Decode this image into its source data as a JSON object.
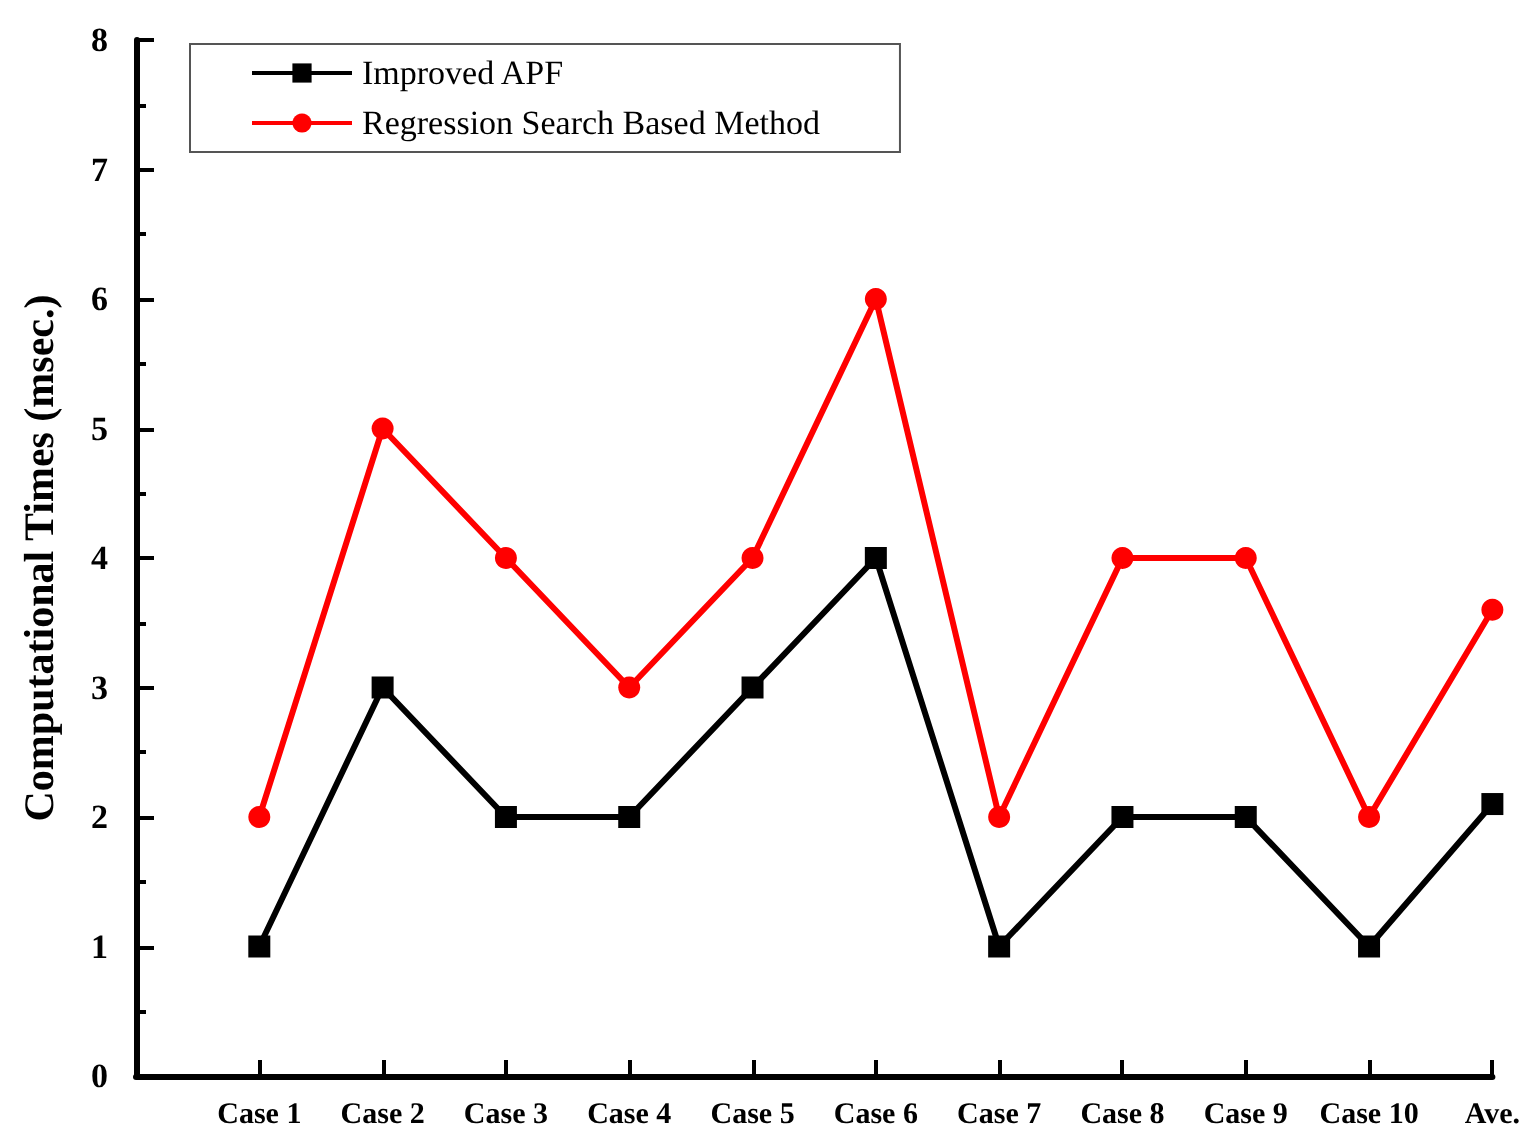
{
  "chart_data": {
    "type": "line",
    "ylabel": "Computational Times (msec.)",
    "categories": [
      null,
      "Case 1",
      "Case 2",
      "Case 3",
      "Case 4",
      "Case 5",
      "Case 6",
      "Case 7",
      "Case 8",
      "Case 9",
      "Case 10",
      "Ave."
    ],
    "series": [
      {
        "name": "Improved APF",
        "color": "#000000",
        "marker": "square",
        "values": [
          null,
          1,
          3,
          2,
          2,
          3,
          4,
          1,
          2,
          2,
          1,
          2.1
        ]
      },
      {
        "name": "Regression Search Based Method",
        "color": "#ff0000",
        "marker": "circle",
        "values": [
          null,
          2,
          5,
          4,
          3,
          4,
          6,
          2,
          4,
          4,
          2,
          3.6
        ]
      }
    ],
    "ylim": [
      0,
      8
    ],
    "yticks": [
      0,
      1,
      2,
      3,
      4,
      5,
      6,
      7,
      8
    ],
    "grid": false,
    "legend": "top left",
    "line_style": "solid"
  }
}
